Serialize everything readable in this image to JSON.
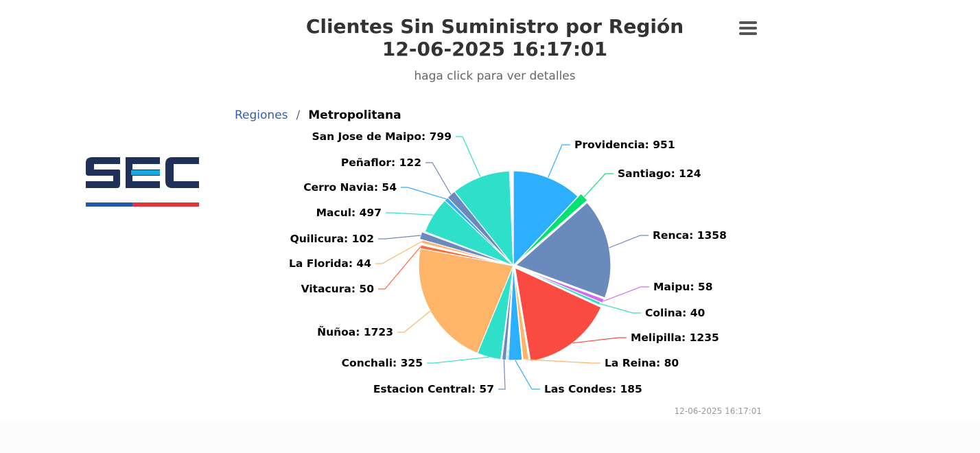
{
  "header": {
    "title_line1": "Clientes Sin Suministro por Región",
    "title_line2": "12-06-2025 16:17:01",
    "subtitle": "haga click para ver detalles"
  },
  "breadcrumb": {
    "parent": "Regiones",
    "separator": "/",
    "current": "Metropolitana"
  },
  "menu": {
    "icon": "hamburger-menu-icon"
  },
  "logo": {
    "text": "SEC",
    "colors": {
      "navy": "#1f3158",
      "cyan": "#17a9e0",
      "blue": "#1d5aa8",
      "red": "#e2353b"
    }
  },
  "credits": "12-06-2025 16:17:01",
  "chart_data": {
    "type": "pie",
    "title": "Clientes Sin Suministro por Región",
    "subtitle": "haga click para ver detalles",
    "slices": [
      {
        "name": "Providencia",
        "value": 951,
        "label": "Providencia: 951",
        "color": "#2caffe"
      },
      {
        "name": "Santiago",
        "value": 124,
        "label": "Santiago: 124",
        "color": "#00e272"
      },
      {
        "name": "Renca",
        "value": 1358,
        "label": "Renca: 1358",
        "color": "#6b8abc"
      },
      {
        "name": "Maipu",
        "value": 58,
        "label": "Maipu: 58",
        "color": "#d568fb"
      },
      {
        "name": "Colina",
        "value": 40,
        "label": "Colina: 40",
        "color": "#2ee0ca"
      },
      {
        "name": "Melipilla",
        "value": 1235,
        "label": "Melipilla: 1235",
        "color": "#fa4b42"
      },
      {
        "name": "La Reina",
        "value": 80,
        "label": "La Reina: 80",
        "color": "#feb56a"
      },
      {
        "name": "",
        "value": 10,
        "label": "",
        "color": "#91e8e1"
      },
      {
        "name": "Las Condes",
        "value": 185,
        "label": "Las Condes: 185",
        "color": "#2caffe"
      },
      {
        "name": "",
        "value": 15,
        "label": "",
        "color": "#544fc5"
      },
      {
        "name": "",
        "value": 15,
        "label": "",
        "color": "#00e272"
      },
      {
        "name": "Estacion Central",
        "value": 57,
        "label": "Estacion Central: 57",
        "color": "#6b8abc"
      },
      {
        "name": "",
        "value": 15,
        "label": "",
        "color": "#d568fb"
      },
      {
        "name": "Conchali",
        "value": 325,
        "label": "Conchali: 325",
        "color": "#2ee0ca"
      },
      {
        "name": "Ñuñoa",
        "value": 1723,
        "label": "Ñuñoa: 1723",
        "color": "#feb56a"
      },
      {
        "name": "Vitacura",
        "value": 50,
        "label": "Vitacura: 50",
        "color": "#fe6a35"
      },
      {
        "name": "",
        "value": 12,
        "label": "",
        "color": "#fa4b42"
      },
      {
        "name": "",
        "value": 12,
        "label": "",
        "color": "#fe6a35"
      },
      {
        "name": "La Florida",
        "value": 44,
        "label": "La Florida: 44",
        "color": "#feb56a"
      },
      {
        "name": "Quilicura",
        "value": 102,
        "label": "Quilicura: 102",
        "color": "#6b8abc"
      },
      {
        "name": "",
        "value": 15,
        "label": "",
        "color": "#91e8e1"
      },
      {
        "name": "Macul",
        "value": 497,
        "label": "Macul: 497",
        "color": "#2ee0ca"
      },
      {
        "name": "Cerro Navia",
        "value": 54,
        "label": "Cerro Navia: 54",
        "color": "#2caffe"
      },
      {
        "name": "Peñaflor",
        "value": 122,
        "label": "Peñaflor: 122",
        "color": "#6b8abc"
      },
      {
        "name": "San Jose de Maipo",
        "value": 799,
        "label": "San Jose de Maipo: 799",
        "color": "#2ee0ca"
      },
      {
        "name": "",
        "value": 15,
        "label": "",
        "color": "#91e8e1"
      },
      {
        "name": "",
        "value": 12,
        "label": "",
        "color": "#fe6a35"
      },
      {
        "name": "",
        "value": 12,
        "label": "",
        "color": "#2caffe"
      },
      {
        "name": "",
        "value": 12,
        "label": "",
        "color": "#544fc5"
      }
    ]
  }
}
